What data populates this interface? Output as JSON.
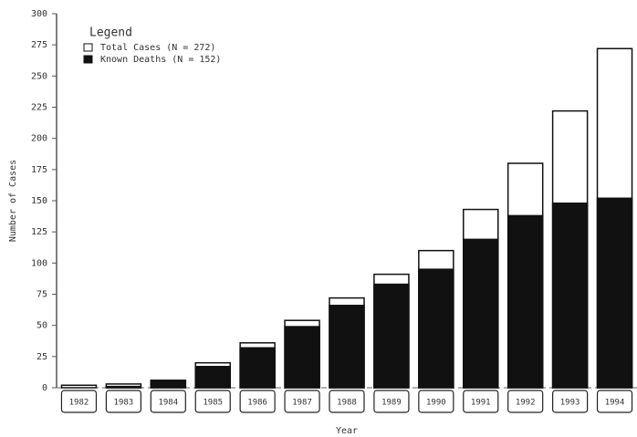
{
  "chart_data": {
    "type": "bar",
    "legend_title": "Legend",
    "legend": "top-left",
    "xlabel": "Year",
    "ylabel": "Number of Cases",
    "categories": [
      "1982",
      "1983",
      "1984",
      "1985",
      "1986",
      "1987",
      "1988",
      "1989",
      "1990",
      "1991",
      "1992",
      "1993",
      "1994"
    ],
    "series": [
      {
        "name": "Total Cases (N = 272)",
        "color": "#ffffff",
        "values": [
          2,
          3,
          6,
          20,
          36,
          54,
          72,
          91,
          110,
          143,
          180,
          222,
          272
        ]
      },
      {
        "name": "Known Deaths (N = 152)",
        "color": "#111111",
        "values": [
          0,
          1,
          5,
          17,
          32,
          49,
          66,
          83,
          95,
          119,
          138,
          148,
          152
        ]
      }
    ],
    "ylim": [
      0,
      300
    ],
    "yticks": [
      0,
      25,
      50,
      75,
      100,
      125,
      150,
      175,
      200,
      225,
      250,
      275,
      300
    ]
  }
}
